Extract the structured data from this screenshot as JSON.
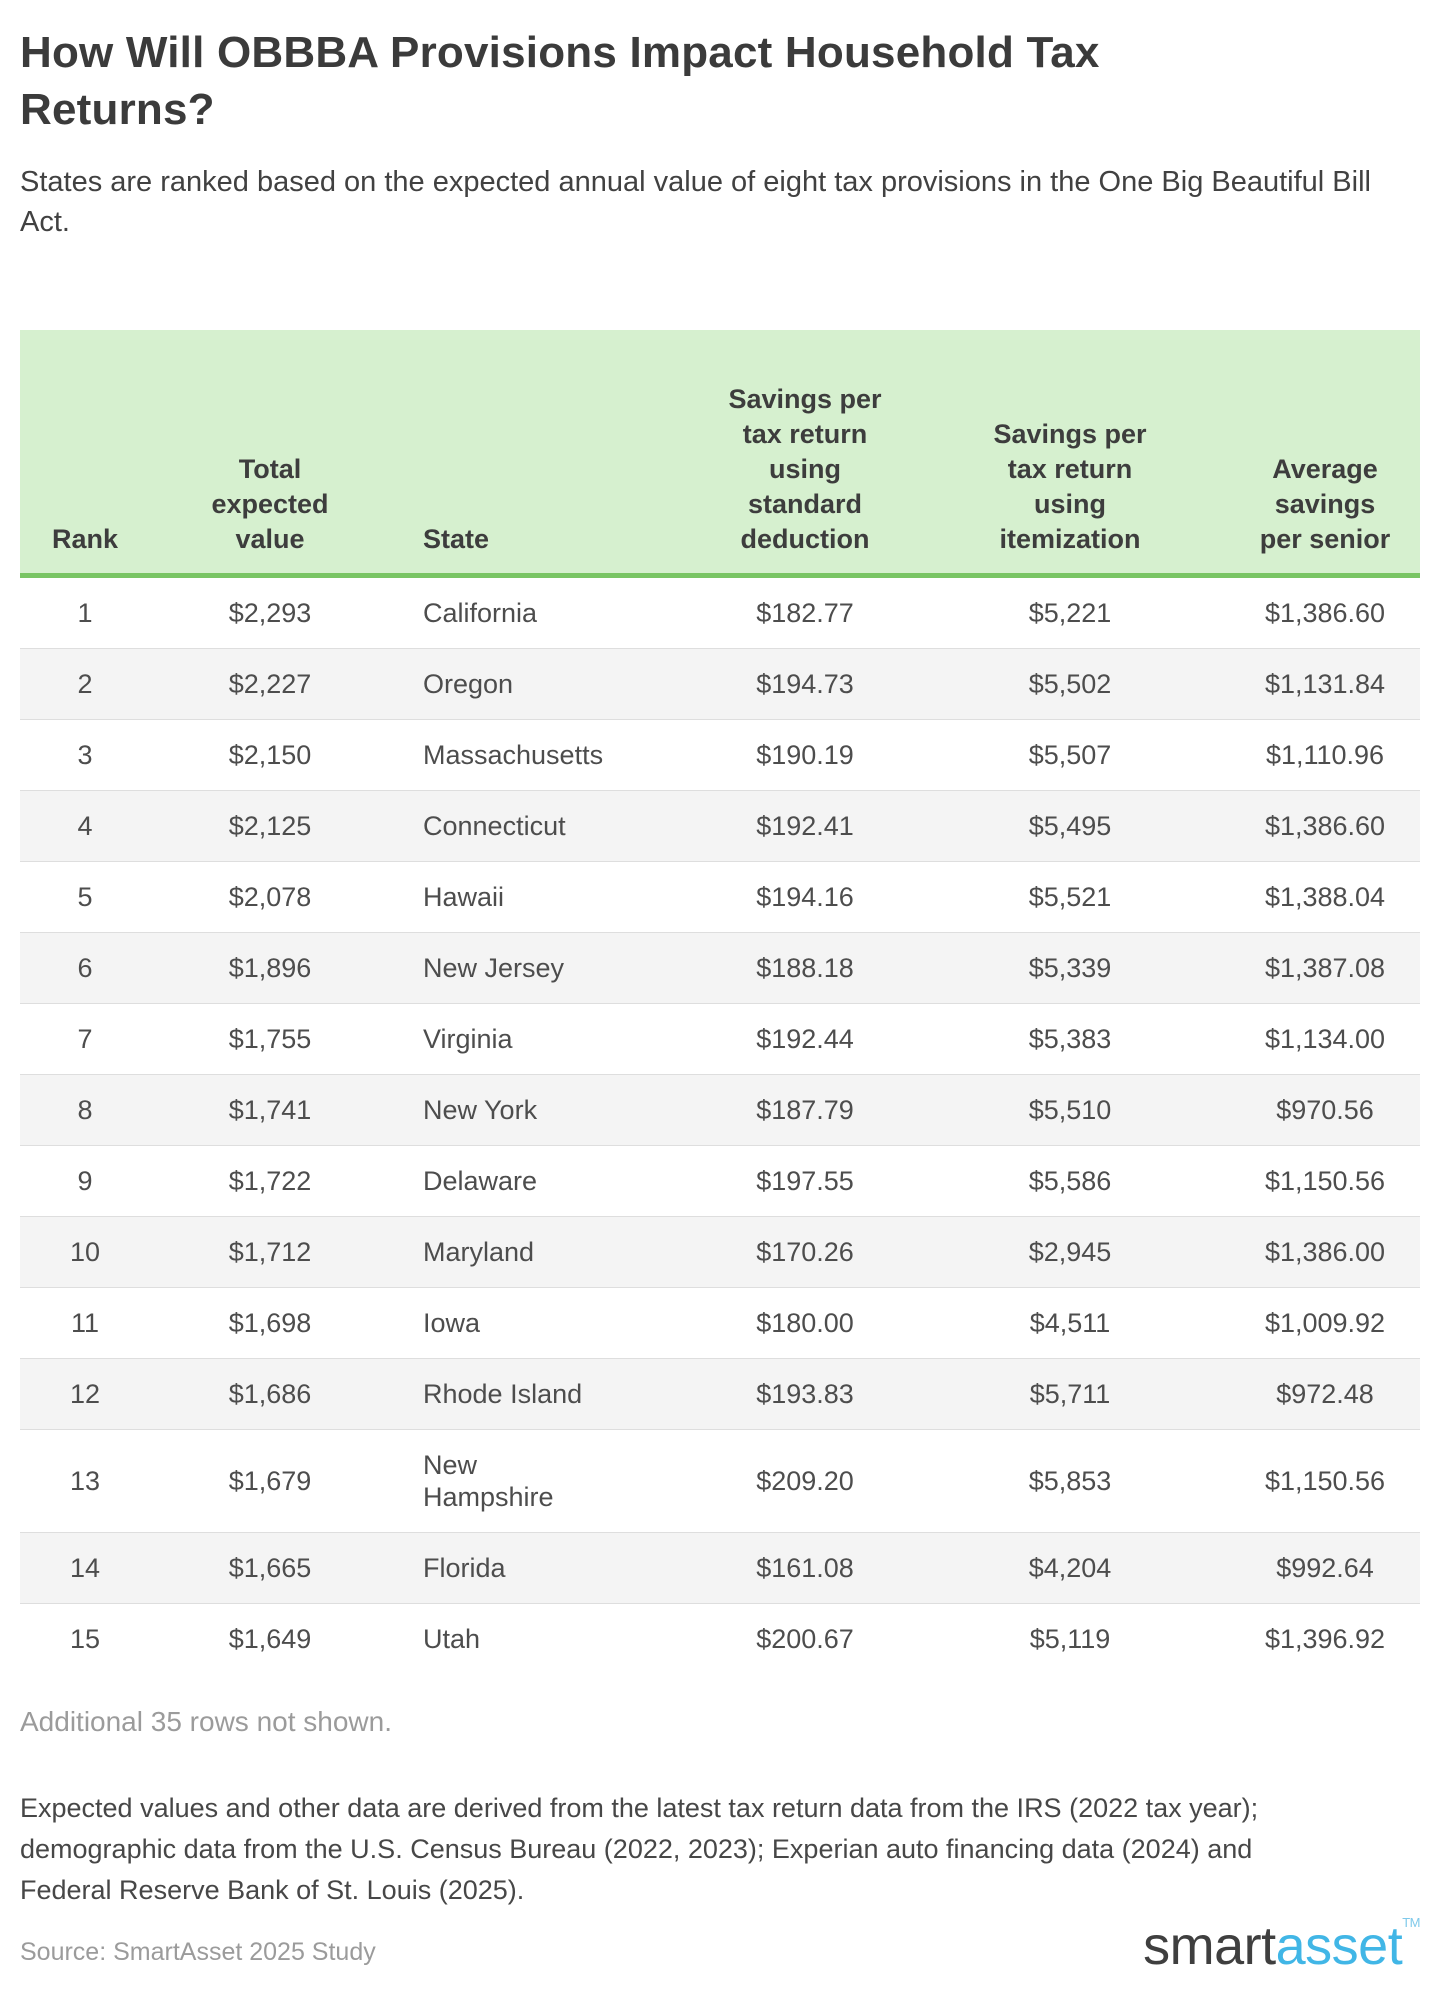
{
  "title": "How Will OBBBA Provisions Impact Household Tax Returns?",
  "subtitle": "States are ranked based on the expected annual value of eight tax provisions in the One Big Beautiful Bill Act.",
  "table": {
    "columns": [
      "Rank",
      "Total\nexpected\nvalue",
      "State",
      "Savings per\ntax return\nusing\nstandard\ndeduction",
      "Savings per\ntax return\nusing\nitemization",
      "Average\nsavings\nper senior"
    ],
    "rows": [
      {
        "rank": "1",
        "total": "$2,293",
        "state": "California",
        "std": "$182.77",
        "item": "$5,221",
        "senior": "$1,386.60"
      },
      {
        "rank": "2",
        "total": "$2,227",
        "state": "Oregon",
        "std": "$194.73",
        "item": "$5,502",
        "senior": "$1,131.84"
      },
      {
        "rank": "3",
        "total": "$2,150",
        "state": "Massachusetts",
        "std": "$190.19",
        "item": "$5,507",
        "senior": "$1,110.96"
      },
      {
        "rank": "4",
        "total": "$2,125",
        "state": "Connecticut",
        "std": "$192.41",
        "item": "$5,495",
        "senior": "$1,386.60"
      },
      {
        "rank": "5",
        "total": "$2,078",
        "state": "Hawaii",
        "std": "$194.16",
        "item": "$5,521",
        "senior": "$1,388.04"
      },
      {
        "rank": "6",
        "total": "$1,896",
        "state": "New Jersey",
        "std": "$188.18",
        "item": "$5,339",
        "senior": "$1,387.08"
      },
      {
        "rank": "7",
        "total": "$1,755",
        "state": "Virginia",
        "std": "$192.44",
        "item": "$5,383",
        "senior": "$1,134.00"
      },
      {
        "rank": "8",
        "total": "$1,741",
        "state": "New York",
        "std": "$187.79",
        "item": "$5,510",
        "senior": "$970.56"
      },
      {
        "rank": "9",
        "total": "$1,722",
        "state": "Delaware",
        "std": "$197.55",
        "item": "$5,586",
        "senior": "$1,150.56"
      },
      {
        "rank": "10",
        "total": "$1,712",
        "state": "Maryland",
        "std": "$170.26",
        "item": "$2,945",
        "senior": "$1,386.00"
      },
      {
        "rank": "11",
        "total": "$1,698",
        "state": "Iowa",
        "std": "$180.00",
        "item": "$4,511",
        "senior": "$1,009.92"
      },
      {
        "rank": "12",
        "total": "$1,686",
        "state": "Rhode Island",
        "std": "$193.83",
        "item": "$5,711",
        "senior": "$972.48"
      },
      {
        "rank": "13",
        "total": "$1,679",
        "state": "New\nHampshire",
        "std": "$209.20",
        "item": "$5,853",
        "senior": "$1,150.56"
      },
      {
        "rank": "14",
        "total": "$1,665",
        "state": "Florida",
        "std": "$161.08",
        "item": "$4,204",
        "senior": "$992.64"
      },
      {
        "rank": "15",
        "total": "$1,649",
        "state": "Utah",
        "std": "$200.67",
        "item": "$5,119",
        "senior": "$1,396.92"
      }
    ]
  },
  "footnote": "Additional 35 rows not shown.",
  "note": "Expected values and other data are derived from the latest tax return data from the IRS (2022 tax year); demographic data from the U.S. Census Bureau (2022, 2023); Experian auto financing data (2024) and Federal Reserve Bank of St. Louis (2025).",
  "source": "Source: SmartAsset 2025 Study",
  "logo": {
    "part1": "smart",
    "part2": "asset",
    "tm": "TM"
  },
  "colors": {
    "header_bg": "#d6f0cf",
    "header_border_green": "#79c564",
    "row_stripe": "#f4f4f4",
    "row_border": "#dedede",
    "text_dark": "#3b3b3b",
    "text_body": "#4d4d4d",
    "text_muted": "#9b9b9b",
    "logo_blue": "#41b6e6"
  }
}
